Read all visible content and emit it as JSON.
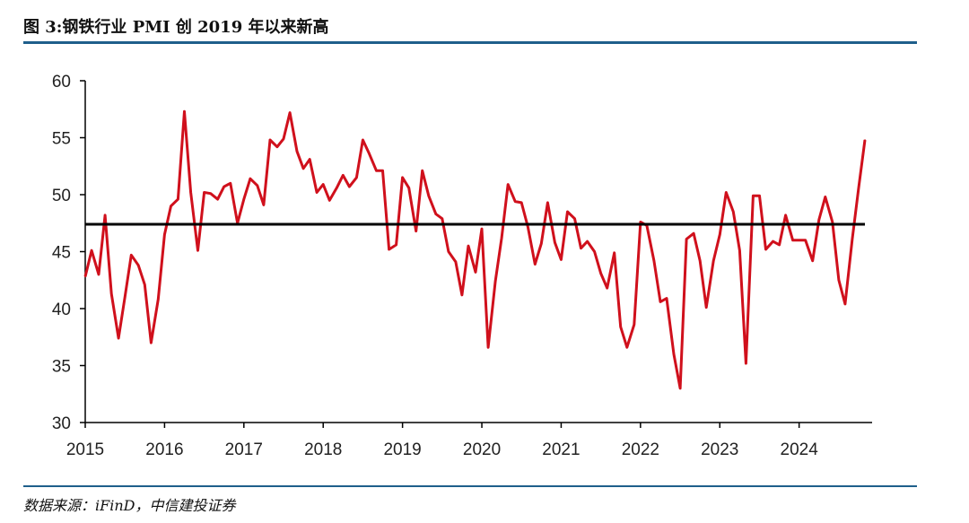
{
  "figure": {
    "title": "图 3:钢铁行业 PMI 创 2019 年以来新高",
    "source": "数据来源：iFinD，中信建投证券"
  },
  "colors": {
    "series": "#d0101c",
    "reference_line": "#000000",
    "rule": "#1f5f8b"
  },
  "chart_data": {
    "type": "line",
    "title": "",
    "xlabel": "",
    "ylabel": "",
    "ylim": [
      30,
      60
    ],
    "yticks": [
      30,
      35,
      40,
      45,
      50,
      55,
      60
    ],
    "x_range": [
      2015,
      2024.92
    ],
    "xticks": [
      "2015",
      "2016",
      "2017",
      "2018",
      "2019",
      "2020",
      "2021",
      "2022",
      "2023",
      "2024"
    ],
    "grid": false,
    "legend": "none",
    "reference_line": {
      "y": 47.4
    },
    "series": [
      {
        "points": [
          [
            2015.0,
            42.8
          ],
          [
            2015.08,
            45.1
          ],
          [
            2015.17,
            43.0
          ],
          [
            2015.25,
            48.2
          ],
          [
            2015.33,
            41.3
          ],
          [
            2015.42,
            37.4
          ],
          [
            2015.5,
            41.0
          ],
          [
            2015.58,
            44.7
          ],
          [
            2015.67,
            43.8
          ],
          [
            2015.75,
            42.1
          ],
          [
            2015.83,
            37.0
          ],
          [
            2015.92,
            40.8
          ],
          [
            2016.0,
            46.5
          ],
          [
            2016.08,
            49.0
          ],
          [
            2016.17,
            49.6
          ],
          [
            2016.25,
            57.3
          ],
          [
            2016.33,
            50.2
          ],
          [
            2016.42,
            45.1
          ],
          [
            2016.5,
            50.2
          ],
          [
            2016.58,
            50.1
          ],
          [
            2016.67,
            49.6
          ],
          [
            2016.75,
            50.7
          ],
          [
            2016.83,
            51.0
          ],
          [
            2016.92,
            47.5
          ],
          [
            2017.0,
            49.6
          ],
          [
            2017.08,
            51.4
          ],
          [
            2017.17,
            50.8
          ],
          [
            2017.25,
            49.1
          ],
          [
            2017.33,
            54.8
          ],
          [
            2017.42,
            54.2
          ],
          [
            2017.5,
            54.9
          ],
          [
            2017.58,
            57.2
          ],
          [
            2017.67,
            53.8
          ],
          [
            2017.75,
            52.3
          ],
          [
            2017.83,
            53.1
          ],
          [
            2017.92,
            50.2
          ],
          [
            2018.0,
            50.9
          ],
          [
            2018.08,
            49.5
          ],
          [
            2018.17,
            50.6
          ],
          [
            2018.25,
            51.7
          ],
          [
            2018.33,
            50.7
          ],
          [
            2018.42,
            51.5
          ],
          [
            2018.5,
            54.8
          ],
          [
            2018.58,
            53.6
          ],
          [
            2018.67,
            52.1
          ],
          [
            2018.75,
            52.1
          ],
          [
            2018.83,
            45.2
          ],
          [
            2018.92,
            45.6
          ],
          [
            2019.0,
            51.5
          ],
          [
            2019.08,
            50.6
          ],
          [
            2019.17,
            46.8
          ],
          [
            2019.25,
            52.1
          ],
          [
            2019.33,
            49.9
          ],
          [
            2019.42,
            48.3
          ],
          [
            2019.5,
            47.9
          ],
          [
            2019.58,
            45.0
          ],
          [
            2019.67,
            44.1
          ],
          [
            2019.75,
            41.2
          ],
          [
            2019.83,
            45.5
          ],
          [
            2019.92,
            43.2
          ],
          [
            2020.0,
            47.0
          ],
          [
            2020.08,
            36.6
          ],
          [
            2020.17,
            42.4
          ],
          [
            2020.25,
            46.2
          ],
          [
            2020.33,
            50.9
          ],
          [
            2020.42,
            49.4
          ],
          [
            2020.5,
            49.3
          ],
          [
            2020.58,
            47.2
          ],
          [
            2020.67,
            43.9
          ],
          [
            2020.75,
            45.7
          ],
          [
            2020.83,
            49.3
          ],
          [
            2020.92,
            45.8
          ],
          [
            2021.0,
            44.3
          ],
          [
            2021.08,
            48.5
          ],
          [
            2021.17,
            47.9
          ],
          [
            2021.25,
            45.3
          ],
          [
            2021.33,
            45.9
          ],
          [
            2021.42,
            45.0
          ],
          [
            2021.5,
            43.1
          ],
          [
            2021.58,
            41.8
          ],
          [
            2021.67,
            44.9
          ],
          [
            2021.75,
            38.4
          ],
          [
            2021.83,
            36.6
          ],
          [
            2021.92,
            38.6
          ],
          [
            2022.0,
            47.6
          ],
          [
            2022.08,
            47.3
          ],
          [
            2022.17,
            44.2
          ],
          [
            2022.25,
            40.6
          ],
          [
            2022.33,
            40.9
          ],
          [
            2022.42,
            36.0
          ],
          [
            2022.5,
            33.0
          ],
          [
            2022.58,
            46.1
          ],
          [
            2022.67,
            46.6
          ],
          [
            2022.75,
            44.2
          ],
          [
            2022.83,
            40.1
          ],
          [
            2022.92,
            44.2
          ],
          [
            2023.0,
            46.5
          ],
          [
            2023.08,
            50.2
          ],
          [
            2023.17,
            48.5
          ],
          [
            2023.25,
            45.1
          ],
          [
            2023.33,
            35.2
          ],
          [
            2023.42,
            49.9
          ],
          [
            2023.5,
            49.9
          ],
          [
            2023.58,
            45.2
          ],
          [
            2023.67,
            45.9
          ],
          [
            2023.75,
            45.6
          ],
          [
            2023.83,
            48.2
          ],
          [
            2023.92,
            46.0
          ],
          [
            2024.0,
            46.0
          ],
          [
            2024.08,
            46.0
          ],
          [
            2024.17,
            44.2
          ],
          [
            2024.25,
            47.8
          ],
          [
            2024.33,
            49.8
          ],
          [
            2024.42,
            47.6
          ],
          [
            2024.5,
            42.5
          ],
          [
            2024.58,
            40.4
          ],
          [
            2024.67,
            46.1
          ],
          [
            2024.75,
            50.6
          ],
          [
            2024.83,
            54.8
          ]
        ]
      }
    ]
  }
}
